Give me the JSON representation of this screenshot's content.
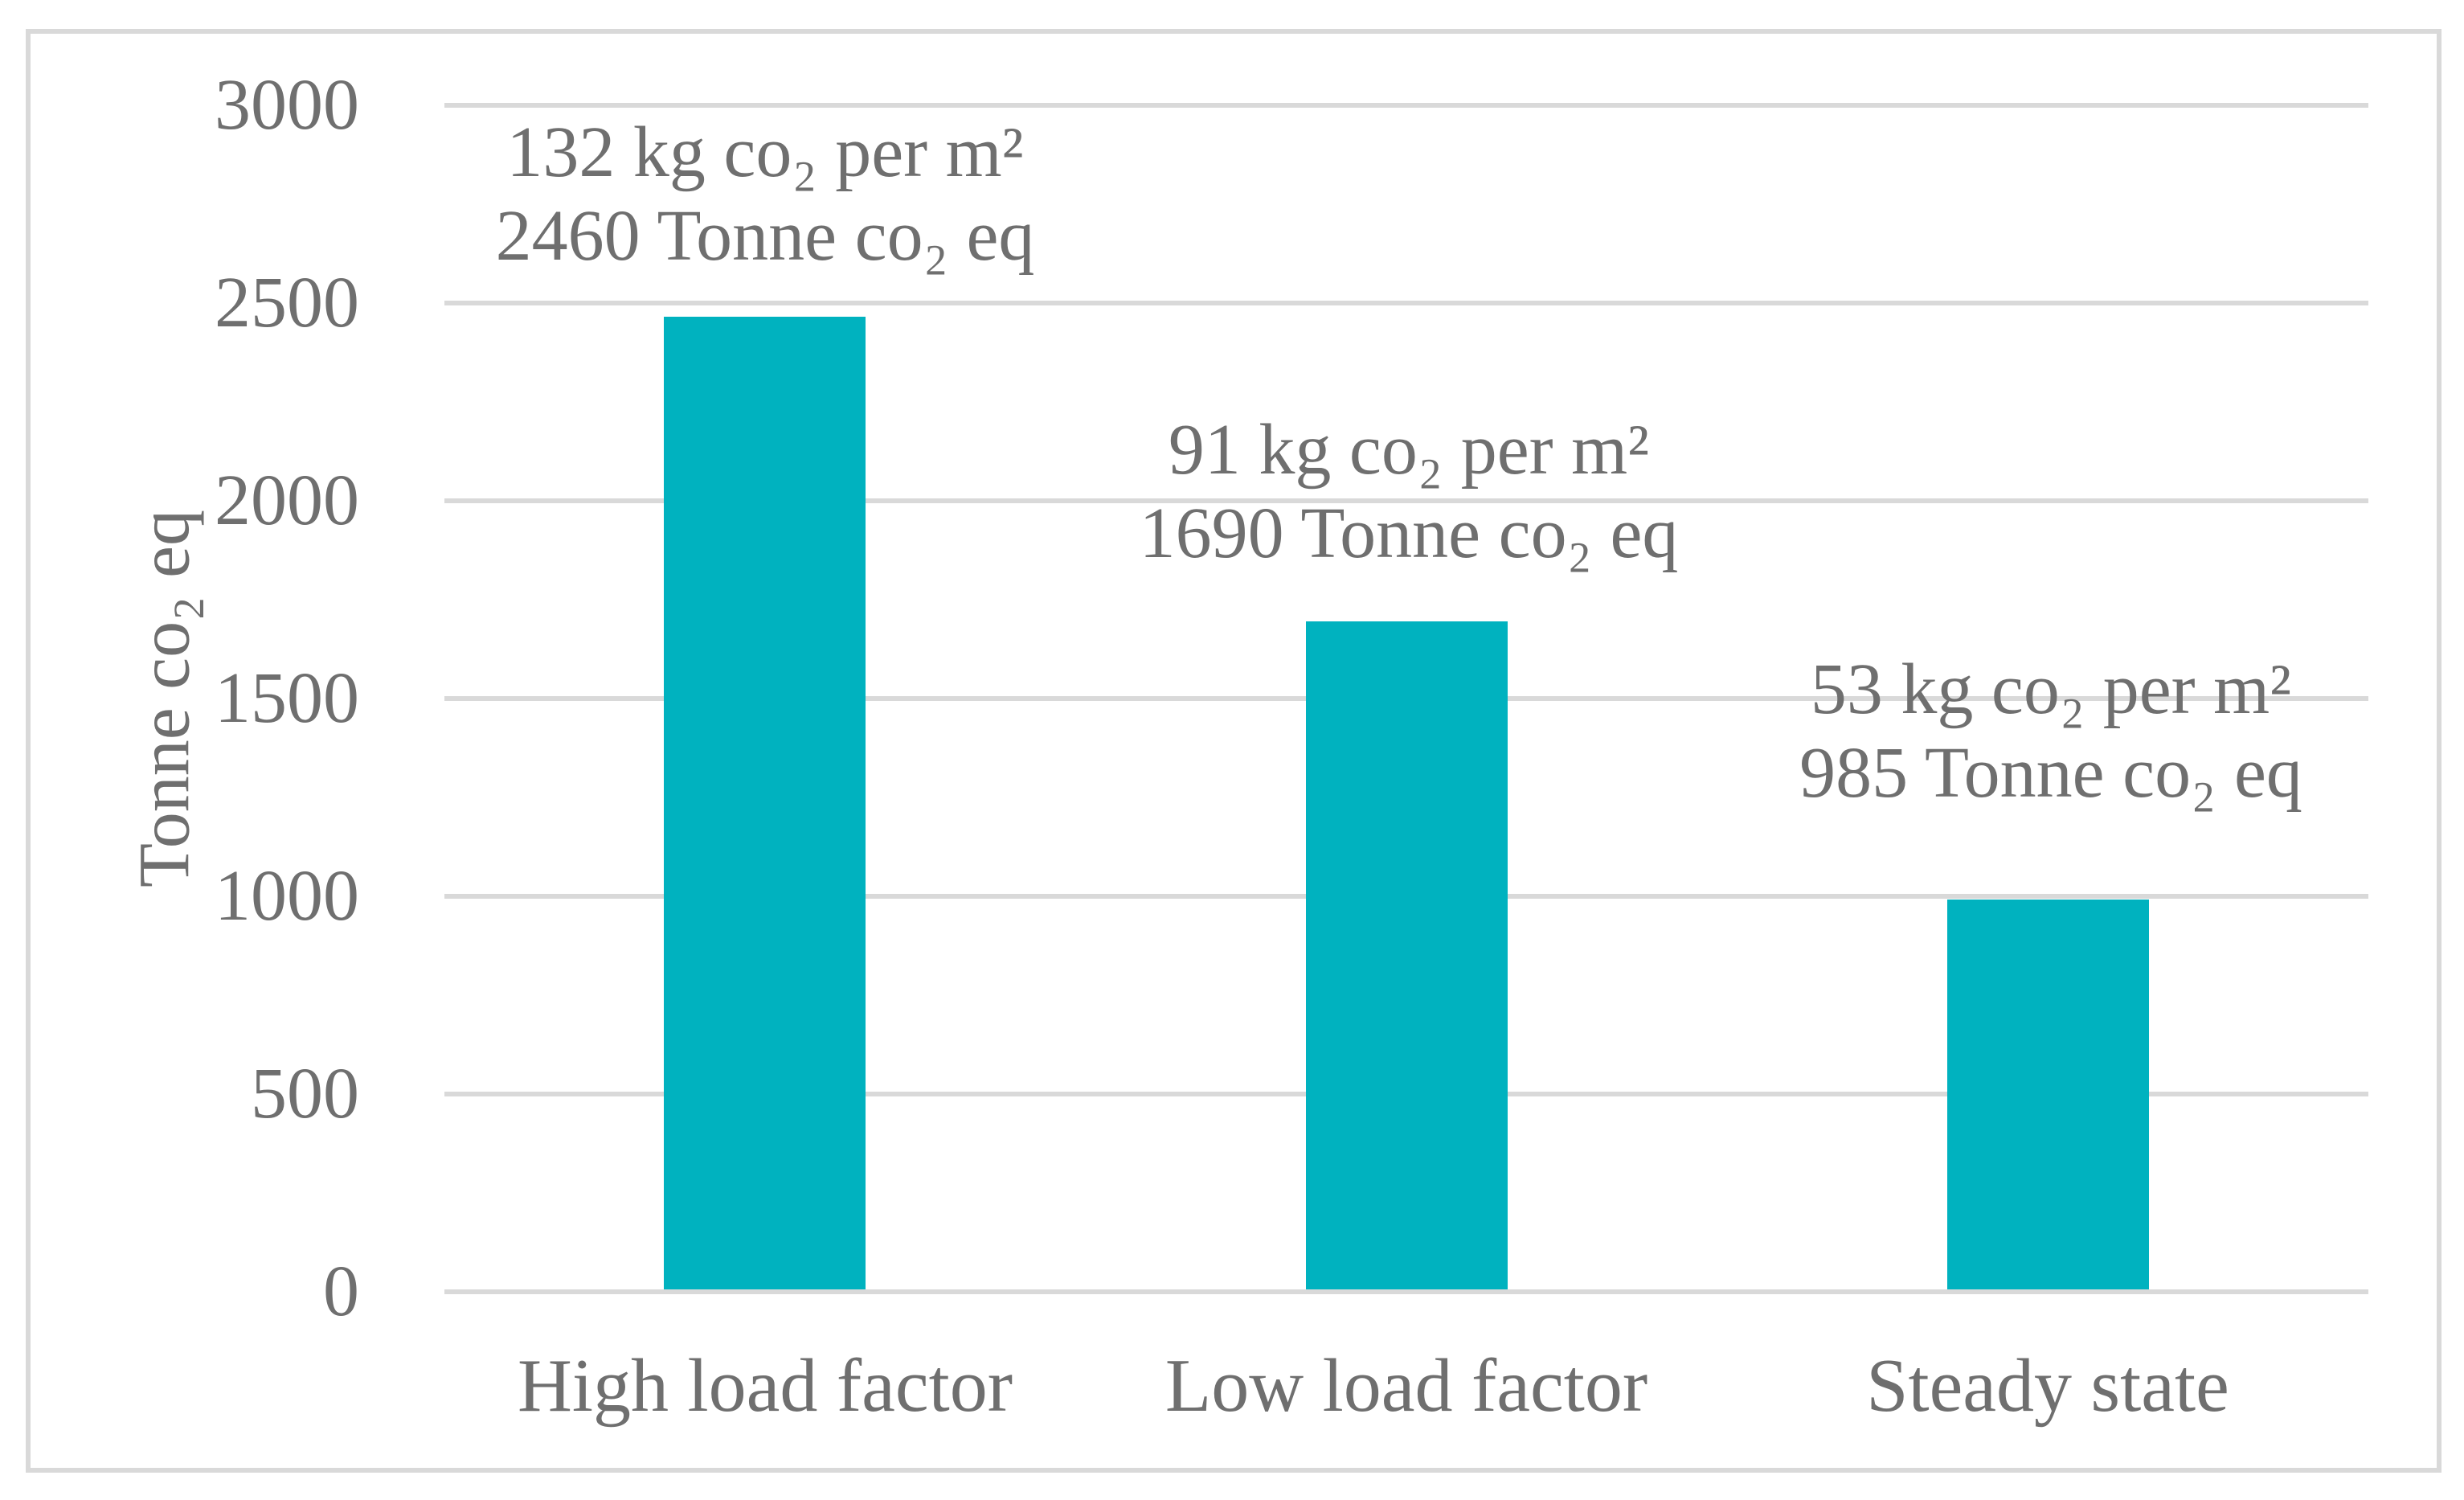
{
  "chart_data": {
    "type": "bar",
    "title": "",
    "xlabel": "",
    "ylabel": "Tonne co₂ eq",
    "categories": [
      "High load factor",
      "Low load factor",
      "Steady state"
    ],
    "values": [
      2460,
      1690,
      985
    ],
    "kg_co2_per_m2": [
      132,
      91,
      53
    ],
    "ylim": [
      0,
      3000
    ],
    "ytick_step": 500,
    "yticks": [
      "3000",
      "2500",
      "2000",
      "1500",
      "1000",
      "500",
      "0"
    ],
    "grid": true,
    "legend": "none",
    "annotations": [
      {
        "line1": "132 kg co₂ per m²",
        "line2": "2460 Tonne co₂ eq"
      },
      {
        "line1": "91 kg co₂ per m²",
        "line2": "1690 Tonne co₂ eq"
      },
      {
        "line1": "53 kg co₂ per m²",
        "line2": "985 Tonne co₂ eq"
      }
    ]
  },
  "colors": {
    "bar": "#00B2BF",
    "gridline": "#D9D9D9",
    "frame_border": "#D9D9D9",
    "text": "#6F6F6F",
    "background": "#FFFFFF"
  }
}
